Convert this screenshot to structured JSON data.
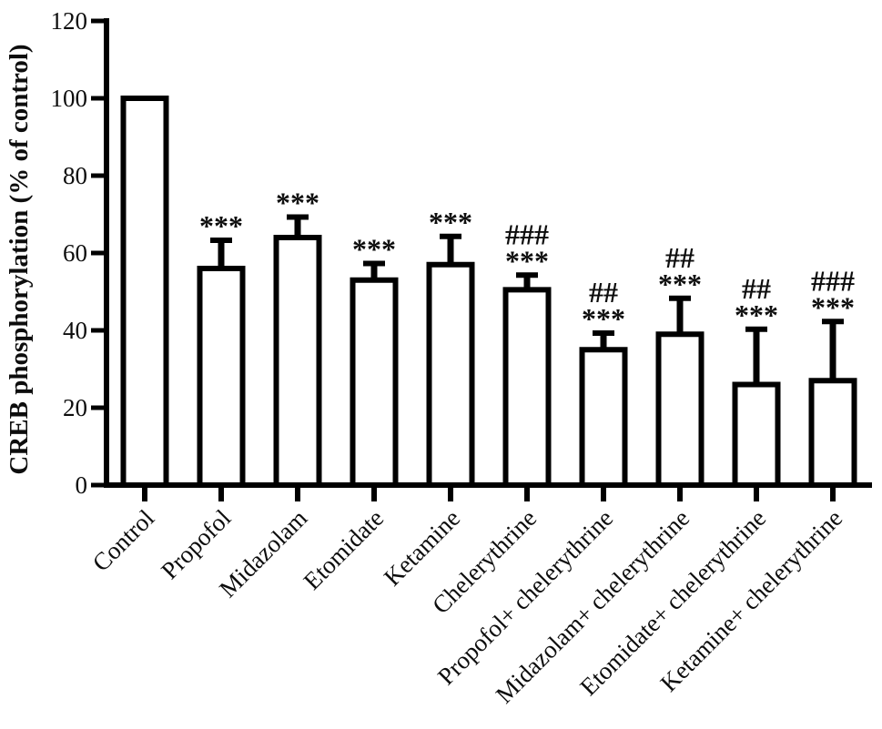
{
  "chart_data": {
    "type": "bar",
    "title": "",
    "xlabel": "",
    "ylabel": "CREB phosphorylation (% of control)",
    "ylim": [
      0,
      120
    ],
    "yticks": [
      0,
      20,
      40,
      60,
      80,
      100,
      120
    ],
    "grid": false,
    "legend": null,
    "background_color": "#ffffff",
    "bar_fill": "#ffffff",
    "bar_stroke": "#000000",
    "categories": [
      "Control",
      "Propofol",
      "Midazolam",
      "Etomidate",
      "Ketamine",
      "Chelerythrine",
      "Propofol+ chelerythrine",
      "Midazolam+ chelerythrine",
      "Etomidate+ chelerythrine",
      "Ketamine+ chelerythrine"
    ],
    "values": [
      100,
      56,
      64,
      53,
      57,
      50.5,
      35,
      39,
      26,
      27
    ],
    "errors_upper": [
      0,
      8,
      6,
      5,
      8,
      4.5,
      5,
      10,
      15,
      16
    ],
    "significance_lines": [
      [],
      [
        "***"
      ],
      [
        "***"
      ],
      [
        "***"
      ],
      [
        "***"
      ],
      [
        "###",
        "***"
      ],
      [
        "##",
        "***"
      ],
      [
        "##",
        "***"
      ],
      [
        "##",
        "***"
      ],
      [
        "###",
        "***"
      ]
    ]
  }
}
